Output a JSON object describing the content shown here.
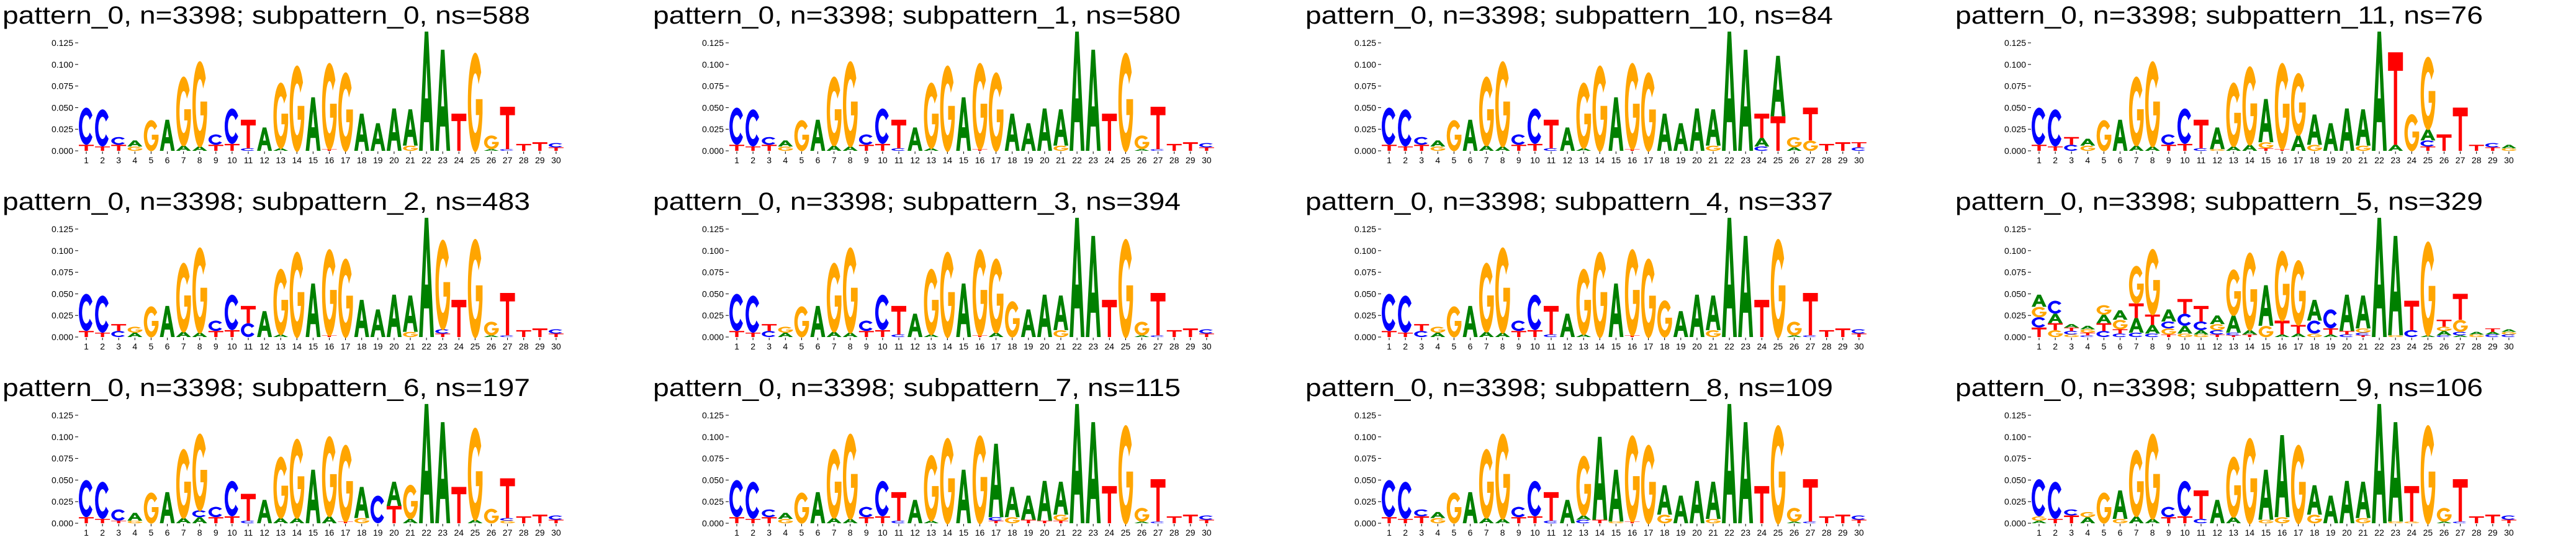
{
  "chart_data": {
    "type": "sequence-logo",
    "ylim": [
      0,
      0.138
    ],
    "yticks": [
      "0.000",
      "0.025",
      "0.050",
      "0.075",
      "0.100",
      "0.125"
    ],
    "xticks": [
      "1",
      "2",
      "3",
      "4",
      "5",
      "6",
      "7",
      "8",
      "9",
      "10",
      "11",
      "12",
      "13",
      "14",
      "15",
      "16",
      "17",
      "18",
      "19",
      "20",
      "21",
      "22",
      "23",
      "24",
      "25",
      "26",
      "27",
      "28",
      "29",
      "30"
    ],
    "letter_colors": {
      "A": "#008000",
      "C": "#0000ff",
      "G": "#ffa500",
      "T": "#ff0000"
    },
    "column_format": "letters stacked bottom-to-top, letter:height",
    "base_columns": [
      "T:0.007|C:0.043",
      "T:0.005|C:0.043",
      "T:0.007|C:0.009",
      "G:0.005|A:0.007",
      "G:0.036",
      "A:0.036",
      "A:0.006|G:0.081",
      "A:0.005|G:0.1",
      "T:0.007|C:0.012",
      "T:0.008|C:0.041",
      "C:0.003|T:0.033",
      "A:0.027",
      "A:0.003|G:0.077",
      "G:0.1",
      "A:0.062",
      "T:0.002|G:0.101",
      "G:0.092",
      "A:0.043",
      "A:0.032",
      "A:0.049",
      "G:0.006|A:0.042",
      "A:0.138",
      "A:0.117",
      "T:0.043",
      "G:0.115",
      "A:0.002|G:0.016",
      "C:0.002|T:0.049",
      "T:0.008",
      "T:0.01",
      "T:0.004|C:0.005"
    ],
    "panels": [
      {
        "title": "pattern_0, n=3398; subpattern_0, ns=588",
        "overrides": {}
      },
      {
        "title": "pattern_0, n=3398; subpattern_1, ns=580",
        "overrides": {}
      },
      {
        "title": "pattern_0, n=3398; subpattern_10, ns=84",
        "overrides": {
          "24": "C:0.005|A:0.01|T:0.028",
          "25": "T:0.04|A:0.07",
          "26": "A:0.004|G:0.012",
          "27": "G:0.012|T:0.038",
          "29": "T:0.01",
          "30": "C:0.004|T:0.006"
        }
      },
      {
        "title": "pattern_0, n=3398; subpattern_11, ns=76",
        "overrides": {
          "3": "C:0.007|T:0.009",
          "4": "G:0.006|A:0.008",
          "12": "G:0.002|A:0.025",
          "13": "A:0.005|G:0.075",
          "14": "A:0.007|G:0.092",
          "15": "T:0.003|G:0.007|A:0.05",
          "17": "A:0.018|G:0.073",
          "18": "G:0.007|A:0.035",
          "23": "A:0.007|T:0.107",
          "24": "G:0.043",
          "25": "T:0.005|C:0.007|A:0.013|G:0.085",
          "26": "T:0.019",
          "27": "T:0.05",
          "28": "T:0.007",
          "29": "T:0.004|C:0.005",
          "30": "G:0.003|A:0.004"
        }
      },
      {
        "title": "pattern_0, n=3398; subpattern_2, ns=483",
        "overrides": {
          "3": "C:0.007|T:0.008",
          "4": "A:0.005|G:0.007",
          "11": "C:0.016|T:0.02",
          "12": "A:0.03",
          "23": "T:0.004|C:0.005|G:0.105",
          "24": "T:0.043"
        }
      },
      {
        "title": "pattern_0, n=3398; subpattern_3, ns=394",
        "overrides": {
          "3": "C:0.007|T:0.008",
          "4": "A:0.005|G:0.007",
          "17": "A:0.005|G:0.087",
          "18": "G:0.042",
          "19": "A:0.032",
          "21": "G:0.008|A:0.04"
        }
      },
      {
        "title": "pattern_0, n=3398; subpattern_4, ns=337",
        "overrides": {
          "3": "C:0.007|T:0.008",
          "4": "A:0.005|G:0.007",
          "18": "G:0.043",
          "19": "A:0.03",
          "21": "G:0.008|A:0.04"
        }
      },
      {
        "title": "pattern_0, n=3398; subpattern_5, ns=329",
        "overrides": {
          "1": "T:0.011|C:0.012|G:0.012|A:0.014",
          "2": "G:0.008|T:0.008|A:0.011|C:0.015",
          "3": "G:0.003|C:0.004|T:0.004|A:0.004",
          "4": "C:0.002|T:0.003|G:0.004|A:0.004",
          "5": "C:0.007|T:0.009|A:0.01|G:0.011",
          "6": "C:0.004|T:0.005|G:0.011|A:0.011",
          "7": "C:0.005|A:0.017|T:0.017|G:0.044",
          "8": "C:0.004|A:0.01|T:0.012|G:0.077",
          "9": "T:0.003|G:0.007|C:0.008|A:0.014",
          "10": "G:0.004|A:0.009|C:0.014|T:0.017",
          "11": "G:0.003|A:0.005|C:0.01|T:0.018",
          "12": "T:0.003|C:0.005|G:0.007|A:0.01",
          "13": "T:0.002|C:0.003|A:0.02|G:0.054",
          "14": "T:0.003|A:0.005|G:0.091",
          "15": "G:0.013|A:0.047",
          "16": "A:0.003|T:0.016|G:0.082",
          "17": "A:0.004|T:0.01|G:0.076",
          "18": "G:0.004|C:0.015|A:0.024",
          "19": "A:0.003|T:0.007|C:0.022",
          "20": "C:0.003|T:0.004|A:0.042",
          "21": "T:0.002|C:0.003|G:0.005|A:0.038",
          "23": "G:0.002|A:0.115",
          "24": "C:0.008|T:0.034",
          "25": "A:0.002|G:0.11",
          "26": "C:0.002|A:0.005|G:0.005|T:0.008",
          "27": "A:0.002|C:0.004|G:0.014|T:0.03",
          "28": "G:0.003|A:0.003",
          "29": "C:0.003|A:0.003|T:0.004",
          "30": "C:0.003|G:0.003|A:0.003"
        }
      },
      {
        "title": "pattern_0, n=3398; subpattern_6, ns=197",
        "overrides": {
          "3": "T:0.003|C:0.013",
          "4": "G:0.003|A:0.009",
          "8": "A:0.007|C:0.008|G:0.09",
          "11": "C:0.003|T:0.031",
          "13": "A:0.006|G:0.072",
          "14": "A:0.006|G:0.093",
          "16": "A:0.008|G:0.094",
          "17": "T:0.002|G:0.09",
          "18": "G:0.006|A:0.036",
          "19": "C:0.032",
          "20": "T:0.02|A:0.028",
          "21": "A:0.005|G:0.04",
          "24": "T:0.042",
          "25": "A:0.004|G:0.108",
          "26": "G:0.017",
          "27": "G:0.003|C:0.003|T:0.046"
        }
      },
      {
        "title": "pattern_0, n=3398; subpattern_7, ns=115",
        "overrides": {
          "3": "T:0.007|C:0.009",
          "16": "G:0.103",
          "17": "T:0.003|C:0.004|A:0.085",
          "18": "G:0.007|A:0.035",
          "19": "T:0.004|A:0.028",
          "20": "T:0.003|A:0.046",
          "21": "T:0.003|G:0.007|A:0.038"
        }
      },
      {
        "title": "pattern_0, n=3398; subpattern_8, ns=109",
        "overrides": {
          "3": "T:0.008|C:0.008",
          "4": "G:0.006|A:0.007",
          "13": "C:0.004|A:0.005|G:0.07",
          "14": "T:0.004|A:0.096",
          "15": "G:0.002|A:0.06",
          "18": "G:0.01|A:0.034",
          "21": "G:0.005|A:0.043"
        }
      },
      {
        "title": "pattern_0, n=3398; subpattern_9, ns=106",
        "overrides": {
          "1": "A:0.003|G:0.005|C:0.043",
          "3": "T:0.009|C:0.007",
          "4": "A:0.007|G:0.006",
          "6": "G:0.005|A:0.033",
          "7": "A:0.008|G:0.078",
          "11": "C:0.005|T:0.033",
          "13": "A:0.007|G:0.071",
          "15": "G:0.004|A:0.058",
          "16": "G:0.007|A:0.095",
          "17": "G:0.092",
          "18": "G:0.01|A:0.034",
          "21": "G:0.006|A:0.042",
          "23": "G:0.002|A:0.115",
          "24": "G:0.002|T:0.041"
        }
      }
    ]
  }
}
